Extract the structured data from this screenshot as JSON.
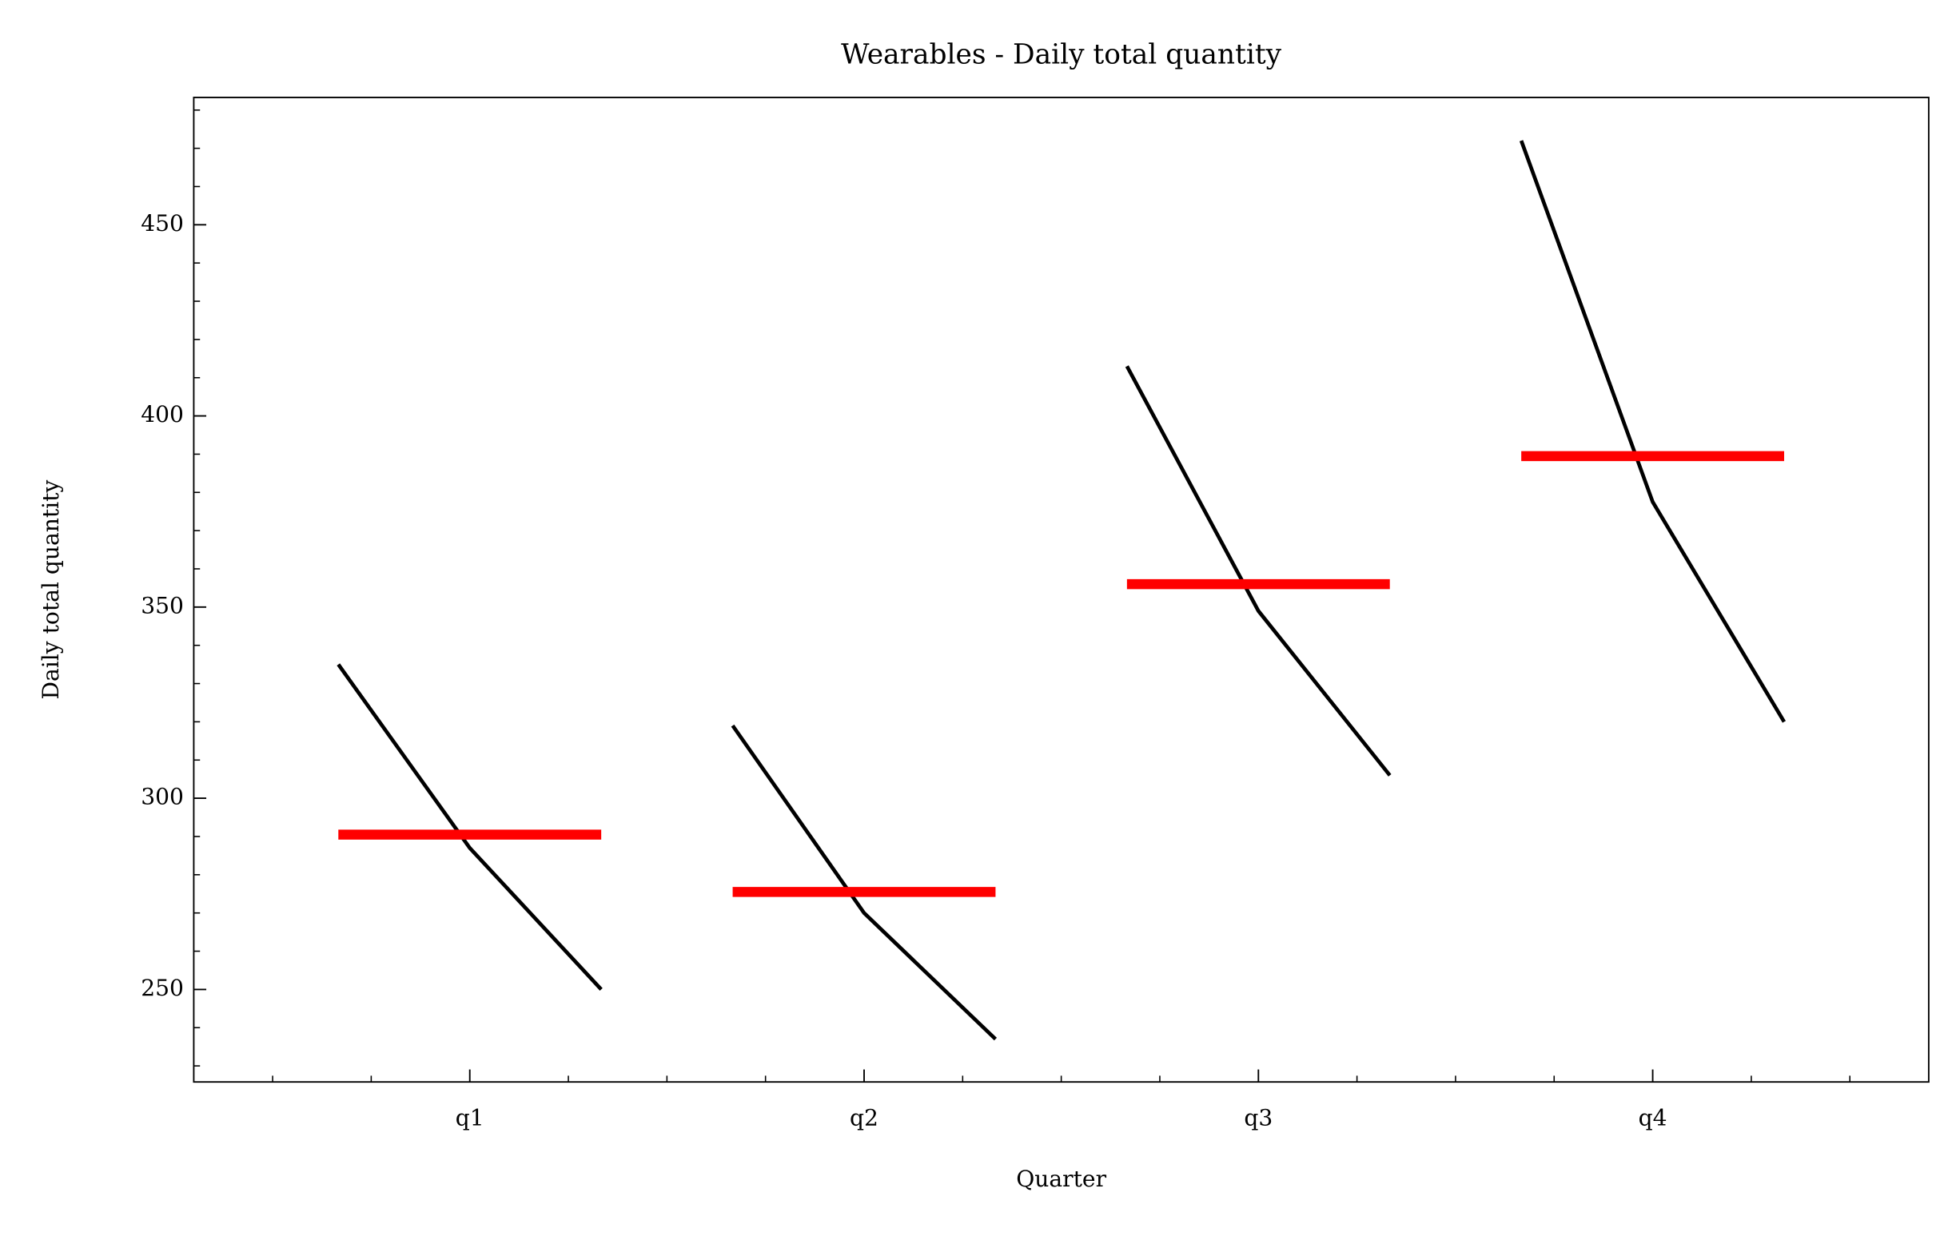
{
  "chart_data": {
    "type": "quarter_plot",
    "title": "Wearables - Daily total quantity",
    "x_label": "Quarter",
    "y_label": "Daily total quantity",
    "categories": [
      "q1",
      "q2",
      "q3",
      "q4"
    ],
    "values": [
      [
        335,
        287,
        250
      ],
      [
        319,
        270,
        237
      ],
      [
        413,
        349,
        306
      ],
      [
        472,
        377.5,
        320
      ]
    ],
    "means": [
      290.5,
      275.5,
      356,
      389.5
    ],
    "line_color": "#000000",
    "mean_color": "#ff0000",
    "xlim": [
      -0.7,
      3.7
    ],
    "ylim": [
      225.8,
      483.3
    ],
    "yticks": [
      250,
      300,
      350,
      400,
      450
    ],
    "grid": false
  }
}
